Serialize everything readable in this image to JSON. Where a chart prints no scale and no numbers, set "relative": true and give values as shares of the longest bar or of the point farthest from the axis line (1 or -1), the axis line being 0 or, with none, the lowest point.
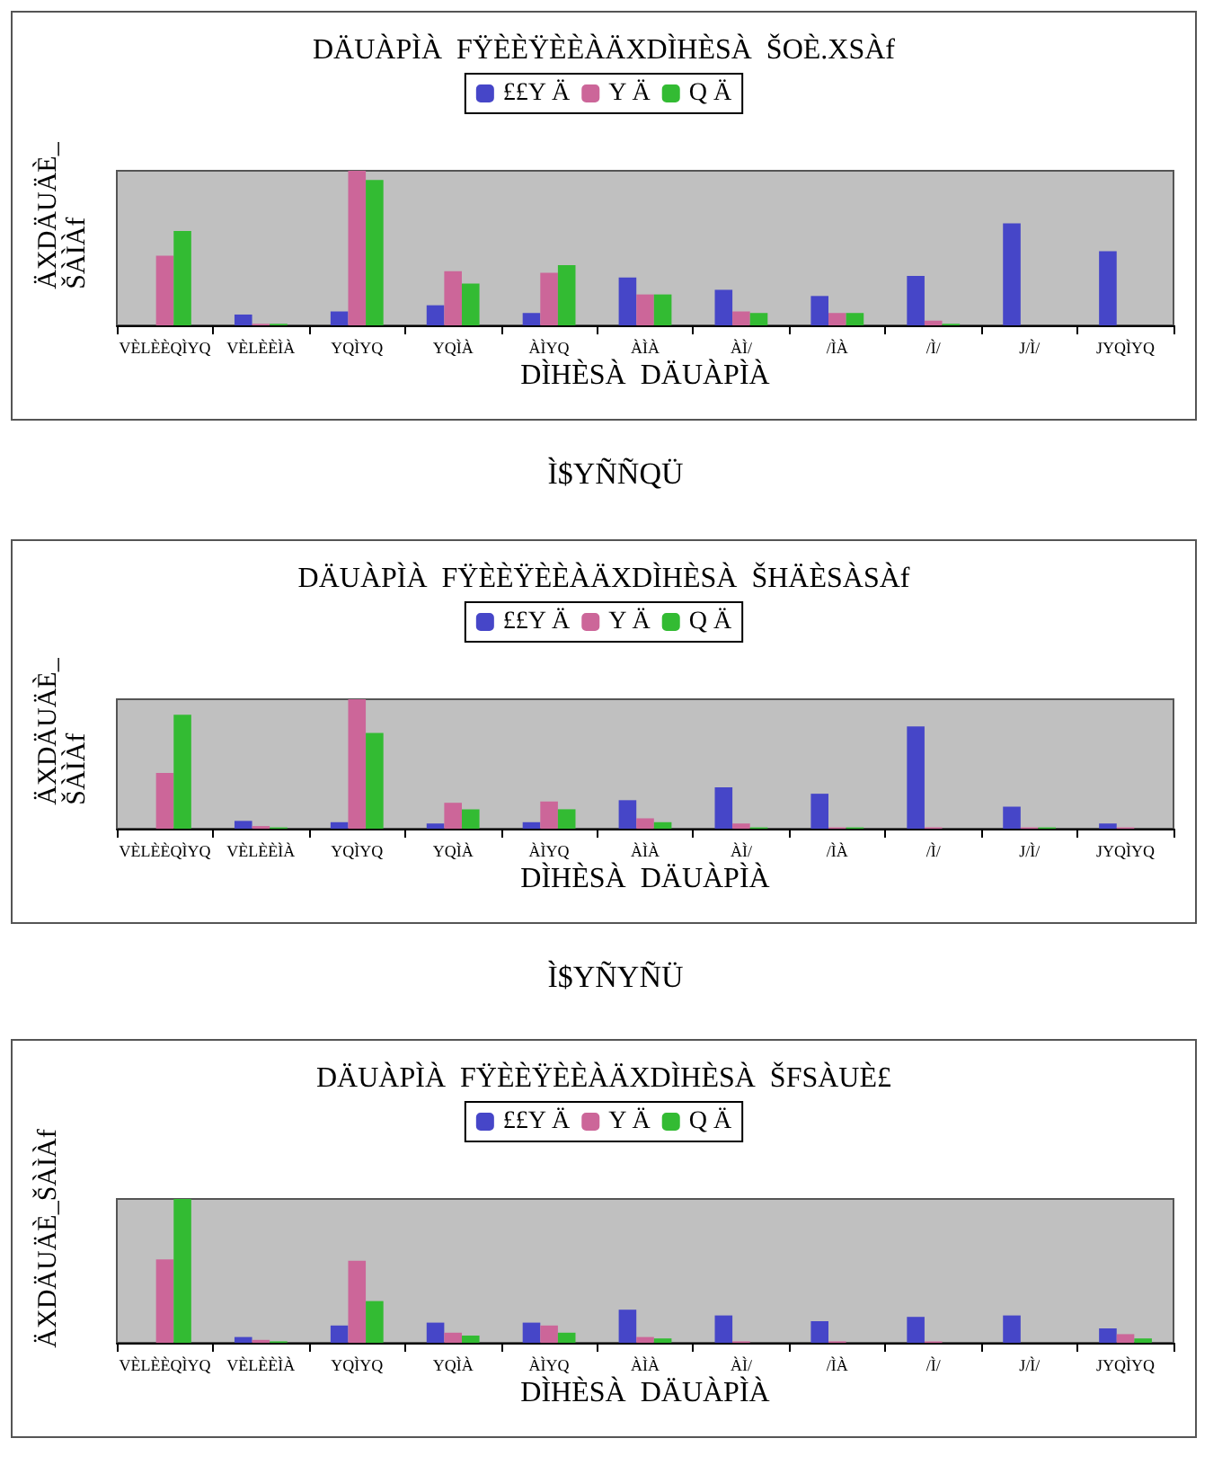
{
  "chart_data": [
    {
      "type": "bar",
      "relative": true,
      "title": "DÄUÀPÌÀ  FŸÈÈŸÈÈÀÄXDÌHÈSÀ  ŠOÈ.XSÀf",
      "xlabel": "DÌHÈSÀ  DÄUÀPÌÀ",
      "ylabel": "ÄXDÄUÄÈ_\nŠÀÌÀf",
      "categories": [
        "VÈLÈÈQÌYQ",
        "VÈLÈÈÌÀ",
        "YQÌYQ",
        "YQÌÀ",
        "ÀÌYQ",
        "ÀÌÀ",
        "ÀÌ/",
        "/ÌÀ",
        "/Ì/",
        "J/Ì/",
        "JYQÌYQ"
      ],
      "series": [
        {
          "name": "££Y Ä",
          "color": "#4646c8",
          "values": [
            0,
            0.07,
            0.09,
            0.13,
            0.08,
            0.31,
            0.23,
            0.19,
            0.32,
            0.66,
            0.48
          ]
        },
        {
          "name": "Y Ä",
          "color": "#cc6699",
          "values": [
            0.45,
            0.01,
            1,
            0.35,
            0.34,
            0.2,
            0.09,
            0.08,
            0.03,
            0,
            0
          ]
        },
        {
          "name": "Q Ä",
          "color": "#33bb33",
          "values": [
            0.61,
            0.01,
            0.94,
            0.27,
            0.39,
            0.2,
            0.08,
            0.08,
            0.01,
            0,
            0
          ]
        }
      ],
      "legend": "top",
      "annotations": [
        "Ì$YÑÑQÜ"
      ]
    },
    {
      "type": "bar",
      "relative": true,
      "title": "DÄUÀPÌÀ  FŸÈÈŸÈÈÀÄXDÌHÈSÀ  ŠHÄÈSÀSÀf",
      "xlabel": "DÌHÈSÀ  DÄUÀPÌÀ",
      "ylabel": "ÄXDÄUÄÈ_\nŠÀÌÀf",
      "categories": [
        "VÈLÈÈQÌYQ",
        "VÈLÈÈÌÀ",
        "YQÌYQ",
        "YQÌÀ",
        "ÀÌYQ",
        "ÀÌÀ",
        "ÀÌ/",
        "/ÌÀ",
        "/Ì/",
        "J/Ì/",
        "JYQÌYQ"
      ],
      "series": [
        {
          "name": "££Y Ä",
          "color": "#4646c8",
          "values": [
            0,
            0.06,
            0.05,
            0.04,
            0.05,
            0.22,
            0.32,
            0.27,
            0.79,
            0.17,
            0.04
          ]
        },
        {
          "name": "Y Ä",
          "color": "#cc6699",
          "values": [
            0.43,
            0.02,
            1,
            0.2,
            0.21,
            0.08,
            0.04,
            0.01,
            0.01,
            0.01,
            0.01
          ]
        },
        {
          "name": "Q Ä",
          "color": "#33bb33",
          "values": [
            0.88,
            0.01,
            0.74,
            0.15,
            0.15,
            0.05,
            0.01,
            0.01,
            0,
            0.01,
            0
          ]
        }
      ],
      "legend": "top",
      "annotations": [
        "Ì$YÑYÑÜ"
      ]
    },
    {
      "type": "bar",
      "relative": true,
      "title": "DÄUÀPÌÀ  FŸÈÈŸÈÈÀÄXDÌHÈSÀ  ŠFSÀUÈ£",
      "xlabel": "DÌHÈSÀ  DÄUÀPÌÀ",
      "ylabel": "ÄXDÄUÄÈ_ŠÀÌÀf",
      "categories": [
        "VÈLÈÈQÌYQ",
        "VÈLÈÈÌÀ",
        "YQÌYQ",
        "YQÌÀ",
        "ÀÌYQ",
        "ÀÌÀ",
        "ÀÌ/",
        "/ÌÀ",
        "/Ì/",
        "J/Ì/",
        "JYQÌYQ"
      ],
      "series": [
        {
          "name": "££Y Ä",
          "color": "#4646c8",
          "values": [
            0,
            0.04,
            0.12,
            0.14,
            0.14,
            0.23,
            0.19,
            0.15,
            0.18,
            0.19,
            0.1
          ]
        },
        {
          "name": "Y Ä",
          "color": "#cc6699",
          "values": [
            0.58,
            0.02,
            0.57,
            0.07,
            0.12,
            0.04,
            0.01,
            0.01,
            0.01,
            0,
            0.06
          ]
        },
        {
          "name": "Q Ä",
          "color": "#33bb33",
          "values": [
            1,
            0.01,
            0.29,
            0.05,
            0.07,
            0.03,
            0,
            0,
            0,
            0,
            0.03
          ]
        }
      ],
      "legend": "top"
    }
  ]
}
